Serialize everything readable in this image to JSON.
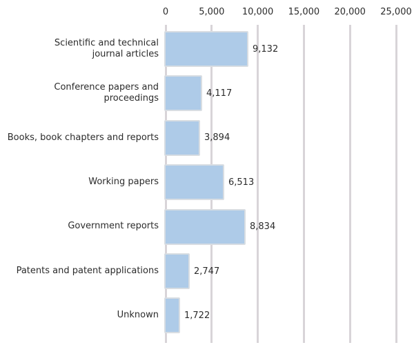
{
  "chart_data": {
    "type": "bar",
    "orientation": "horizontal",
    "title": "",
    "xlabel": "",
    "ylabel": "",
    "axis_position": "top",
    "grid": "vertical",
    "legend": "none",
    "categories": [
      "Scientific and technical\njournal articles",
      "Conference papers and proceedings",
      "Books, book chapters and reports",
      "Working papers",
      "Government reports",
      "Patents and patent applications",
      "Unknown"
    ],
    "values": [
      9132,
      4117,
      3894,
      6513,
      8834,
      2747,
      1722
    ],
    "value_labels": [
      "9,132",
      "4,117",
      "3,894",
      "6,513",
      "8,834",
      "2,747",
      "1,722"
    ],
    "x_ticks": [
      "0",
      "5,000",
      "10,000",
      "15,000",
      "20,000",
      "25,000"
    ],
    "x_tick_values": [
      0,
      5000,
      10000,
      15000,
      20000,
      25000
    ],
    "xlim": [
      0,
      26000
    ],
    "colors": {
      "bar_fill": "#aecbe8",
      "bar_border": "#d8dde2",
      "gridline": "#d8d4d8",
      "text": "#2b2b2b",
      "background": "#ffffff"
    }
  }
}
